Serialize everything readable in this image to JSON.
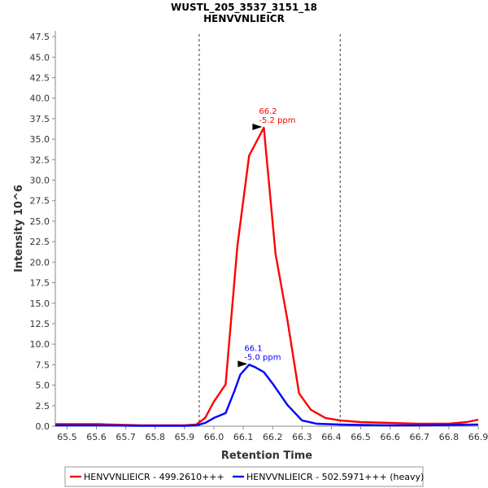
{
  "chart_data": {
    "type": "line",
    "title": "WUSTL_205_3537_3151_18",
    "subtitle": "HENVVNLIEICR",
    "xlabel": "Retention Time",
    "ylabel": "Intensity 10^6",
    "xlim": [
      65.46,
      66.9
    ],
    "ylim": [
      0,
      48.2
    ],
    "x_ticks": [
      "65.5",
      "65.6",
      "65.7",
      "65.8",
      "65.9",
      "66.0",
      "66.1",
      "66.2",
      "66.3",
      "66.4",
      "66.5",
      "66.6",
      "66.7",
      "66.8",
      "66.9"
    ],
    "y_ticks": [
      "0.0",
      "2.5",
      "5.0",
      "7.5",
      "10.0",
      "12.5",
      "15.0",
      "17.5",
      "20.0",
      "22.5",
      "25.0",
      "27.5",
      "30.0",
      "32.5",
      "35.0",
      "37.5",
      "40.0",
      "42.5",
      "45.0",
      "47.5"
    ],
    "boundaries": [
      65.95,
      66.43
    ],
    "series": [
      {
        "name": "HENVVNLIEICR - 499.2610+++",
        "color": "#ff0000",
        "x": [
          65.46,
          65.61,
          65.75,
          65.9,
          65.94,
          65.97,
          66.0,
          66.04,
          66.08,
          66.12,
          66.17,
          66.21,
          66.25,
          66.29,
          66.33,
          66.38,
          66.43,
          66.5,
          66.6,
          66.7,
          66.8,
          66.86,
          66.9
        ],
        "y": [
          0.25,
          0.25,
          0.1,
          0.1,
          0.2,
          1.0,
          3.0,
          5.1,
          22.0,
          33.0,
          36.4,
          21.0,
          13.0,
          4.0,
          2.0,
          1.0,
          0.7,
          0.5,
          0.4,
          0.3,
          0.3,
          0.5,
          0.8
        ]
      },
      {
        "name": "HENVVNLIEICR - 502.5971+++ (heavy)",
        "color": "#0000ff",
        "x": [
          65.46,
          65.6,
          65.75,
          65.9,
          65.94,
          65.97,
          66.0,
          66.04,
          66.07,
          66.09,
          66.12,
          66.14,
          66.17,
          66.2,
          66.25,
          66.3,
          66.35,
          66.43,
          66.5,
          66.6,
          66.7,
          66.8,
          66.9
        ],
        "y": [
          0.1,
          0.1,
          0.05,
          0.05,
          0.1,
          0.4,
          1.0,
          1.6,
          4.3,
          6.3,
          7.5,
          7.2,
          6.6,
          5.2,
          2.6,
          0.7,
          0.3,
          0.2,
          0.15,
          0.1,
          0.1,
          0.15,
          0.2
        ]
      }
    ],
    "annotations": [
      {
        "series": 0,
        "x": 66.17,
        "y": 36.4,
        "line1": "66.2",
        "line2": "-5.2 ppm"
      },
      {
        "series": 1,
        "x": 66.12,
        "y": 7.5,
        "line1": "66.1",
        "line2": "-5.0 ppm"
      }
    ],
    "legend_position": "bottom"
  }
}
